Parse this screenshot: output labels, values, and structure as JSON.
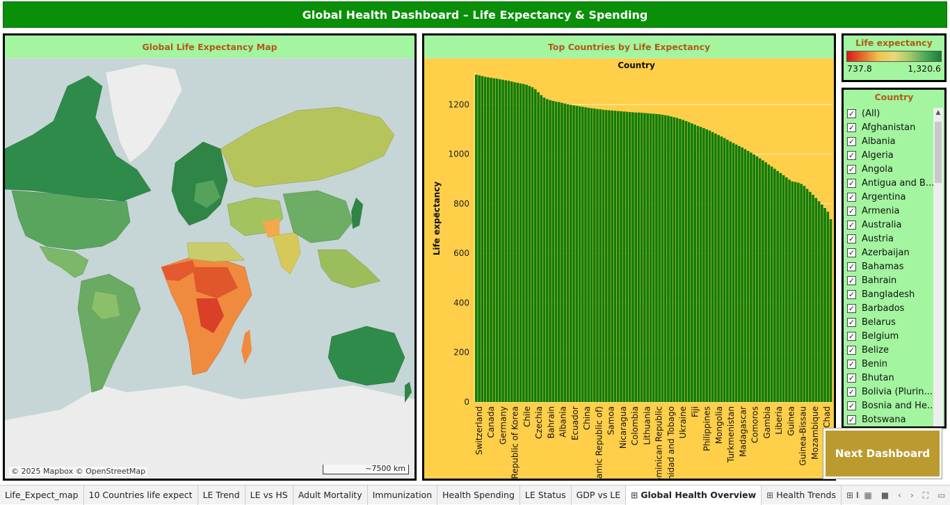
{
  "header": {
    "title": "Global Health Dashboard – Life Expectancy & Spending"
  },
  "map": {
    "title": "Global Life Expectancy Map",
    "credit": "© 2025 Mapbox © OpenStreetMap",
    "scale": "~7500 km"
  },
  "chart": {
    "title": "Top Countries by Life Expectancy"
  },
  "chart_data": {
    "type": "bar",
    "title": "Country",
    "xlabel": "",
    "ylabel": "Life expectancy",
    "ylim": [
      0,
      1330
    ],
    "yticks": [
      0,
      200,
      400,
      600,
      800,
      1000,
      1200
    ],
    "bar_color": "#0f7d0a",
    "tick_labels": [
      "Switzerland",
      "Canada",
      "Germany",
      "Republic of Korea",
      "Chile",
      "Czechia",
      "Bahrain",
      "Albania",
      "Ecuador",
      "China",
      "Iran (Islamic Republic of)",
      "Samoa",
      "Nicaragua",
      "Colombia",
      "Lithuania",
      "Dominican Republic",
      "Trinidad and Tobago",
      "Ukraine",
      "Fiji",
      "Philippines",
      "Mongolia",
      "Turkmenistan",
      "Madagascar",
      "Comoros",
      "Gambia",
      "Liberia",
      "Guinea",
      "Guinea-Bissau",
      "Mozambique",
      "Chad"
    ],
    "values": [
      1320.6,
      1318,
      1315,
      1312,
      1310,
      1308,
      1306,
      1305,
      1302,
      1300,
      1298,
      1296,
      1293,
      1290,
      1288,
      1285,
      1283,
      1280,
      1275,
      1270,
      1262,
      1250,
      1238,
      1228,
      1222,
      1218,
      1215,
      1212,
      1210,
      1207,
      1204,
      1201,
      1199,
      1197,
      1195,
      1193,
      1191,
      1189,
      1187,
      1185,
      1184,
      1182,
      1181,
      1179,
      1178,
      1177,
      1176,
      1175,
      1174,
      1173,
      1172,
      1171,
      1170,
      1169,
      1168,
      1168,
      1167,
      1166,
      1165,
      1164,
      1163,
      1162,
      1161,
      1159,
      1157,
      1155,
      1152,
      1149,
      1146,
      1142,
      1138,
      1134,
      1129,
      1124,
      1119,
      1114,
      1110,
      1105,
      1100,
      1095,
      1089,
      1083,
      1077,
      1071,
      1065,
      1058,
      1051,
      1045,
      1039,
      1033,
      1027,
      1020,
      1013,
      1006,
      999,
      991,
      983,
      975,
      967,
      958,
      950,
      941,
      932,
      924,
      915,
      906,
      897,
      890,
      888,
      885,
      880,
      872,
      860,
      848,
      836,
      823,
      810,
      797,
      783,
      768,
      737.8
    ]
  },
  "legend": {
    "title": "Life expectancy",
    "min": "737.8",
    "max": "1,320.6"
  },
  "filter": {
    "title": "Country",
    "items": [
      "(All)",
      "Afghanistan",
      "Albania",
      "Algeria",
      "Angola",
      "Antigua and B...",
      "Argentina",
      "Armenia",
      "Australia",
      "Austria",
      "Azerbaijan",
      "Bahamas",
      "Bahrain",
      "Bangladesh",
      "Barbados",
      "Belarus",
      "Belgium",
      "Belize",
      "Benin",
      "Bhutan",
      "Bolivia (Plurin...",
      "Bosnia and He...",
      "Botswana"
    ]
  },
  "next_button": {
    "label": "Next Dashboard"
  },
  "tabs": [
    {
      "label": "Life_Expect_map",
      "active": false,
      "icon": false
    },
    {
      "label": "10 Countries life expect",
      "active": false,
      "icon": false
    },
    {
      "label": "LE Trend",
      "active": false,
      "icon": false
    },
    {
      "label": "LE vs HS",
      "active": false,
      "icon": false
    },
    {
      "label": "Adult Mortality",
      "active": false,
      "icon": false
    },
    {
      "label": "Immunization",
      "active": false,
      "icon": false
    },
    {
      "label": "Health Spending",
      "active": false,
      "icon": false
    },
    {
      "label": "LE Status",
      "active": false,
      "icon": false
    },
    {
      "label": "GDP vs LE",
      "active": false,
      "icon": false
    },
    {
      "label": "Global Health Overview",
      "active": true,
      "icon": true
    },
    {
      "label": "Health Trends",
      "active": false,
      "icon": true
    },
    {
      "label": "Immunization an",
      "active": false,
      "icon": true
    }
  ],
  "colors": {
    "header": "#0a8f08",
    "panel_head": "#a3f5a0",
    "chart_bg": "#ffcf4a",
    "bars": "#0f7d0a",
    "button": "#bb9b30"
  }
}
